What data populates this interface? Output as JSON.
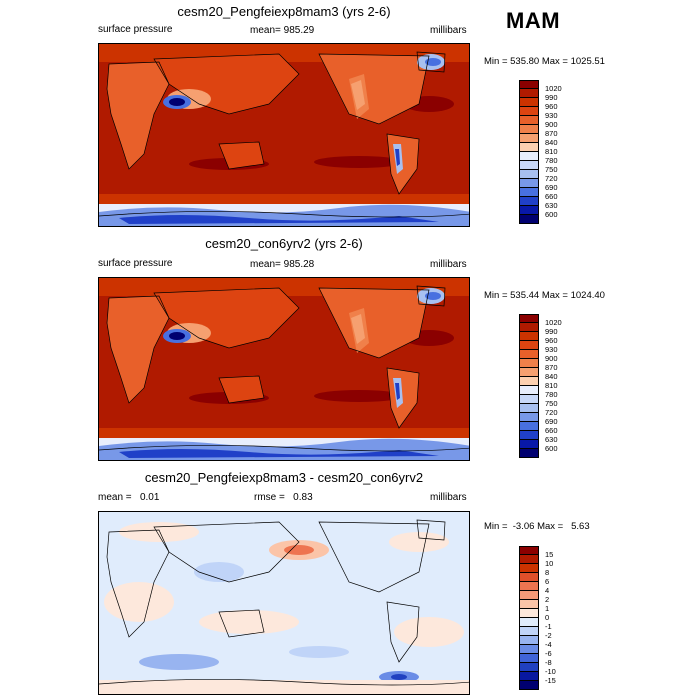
{
  "season": "MAM",
  "panels": [
    {
      "title": "cesm20_Pengfeiexp8mam3 (yrs 2-6)",
      "left_label": "surface pressure",
      "center_label": "mean= 985.29",
      "right_label": "millibars",
      "minmax": "Min = 535.80 Max = 1025.51",
      "colorbar_labels": [
        "1020",
        "990",
        "960",
        "930",
        "900",
        "870",
        "840",
        "810",
        "780",
        "750",
        "720",
        "690",
        "660",
        "630",
        "600"
      ]
    },
    {
      "title": "cesm20_con6yrv2 (yrs 2-6)",
      "left_label": "surface pressure",
      "center_label": "mean= 985.28",
      "right_label": "millibars",
      "minmax": "Min = 535.44 Max = 1024.40",
      "colorbar_labels": [
        "1020",
        "990",
        "960",
        "930",
        "900",
        "870",
        "840",
        "810",
        "780",
        "750",
        "720",
        "690",
        "660",
        "630",
        "600"
      ]
    },
    {
      "title": "cesm20_Pengfeiexp8mam3 - cesm20_con6yrv2",
      "left_label": "mean =   0.01",
      "center_label": "rmse =   0.83",
      "right_label": "millibars",
      "minmax": "Min =  -3.06 Max =   5.63",
      "colorbar_labels": [
        "15",
        "10",
        "8",
        "6",
        "4",
        "2",
        "1",
        "0",
        "-1",
        "-2",
        "-4",
        "-6",
        "-8",
        "-10",
        "-15"
      ]
    }
  ],
  "colors": {
    "pressure_scale": [
      "#8b0000",
      "#b01a00",
      "#cc3300",
      "#dd4411",
      "#e8602a",
      "#f0804a",
      "#f6a070",
      "#fcd0b0",
      "#e8eefc",
      "#c8d8f8",
      "#a8c0f0",
      "#7898e8",
      "#4870e0",
      "#2040c8",
      "#0818a8",
      "#000070"
    ],
    "diff_scale": [
      "#8b0000",
      "#b01a00",
      "#cc3300",
      "#e0502a",
      "#ee7450",
      "#f59a78",
      "#fbc4a8",
      "#fde8dc",
      "#e0ecfc",
      "#c0d4f8",
      "#98b4f0",
      "#6a8ce6",
      "#4064d8",
      "#2040c0",
      "#0818a0",
      "#000070"
    ]
  }
}
